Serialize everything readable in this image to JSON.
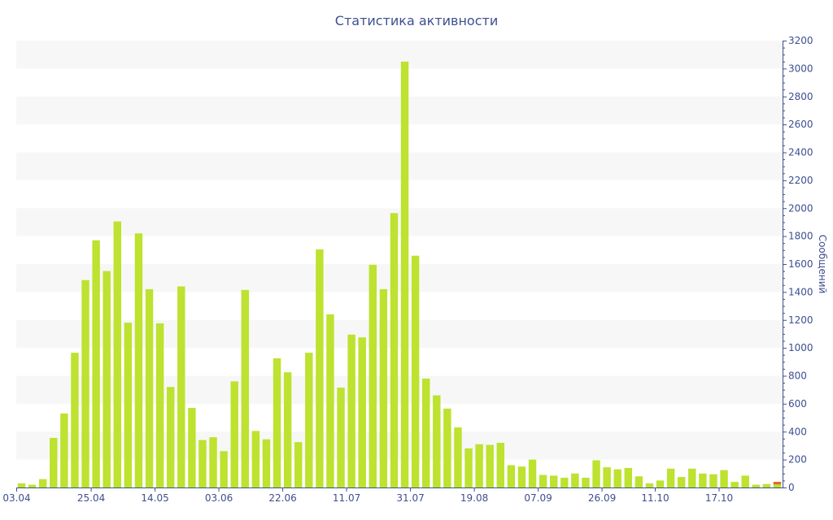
{
  "chart_data": {
    "type": "bar",
    "title": "Статистика активности",
    "ylabel": "Сообщений",
    "xlabel": "",
    "ylim": [
      0,
      3200
    ],
    "y_ticks": [
      0,
      200,
      400,
      600,
      800,
      1000,
      1200,
      1400,
      1600,
      1800,
      2000,
      2200,
      2400,
      2600,
      2800,
      3000,
      3200
    ],
    "x_tick_labels": [
      {
        "label": "03.04",
        "index": 0
      },
      {
        "label": "25.04",
        "index": 7
      },
      {
        "label": "14.05",
        "index": 13
      },
      {
        "label": "03.06",
        "index": 19
      },
      {
        "label": "22.06",
        "index": 25
      },
      {
        "label": "11.07",
        "index": 31
      },
      {
        "label": "31.07",
        "index": 37
      },
      {
        "label": "19.08",
        "index": 43
      },
      {
        "label": "07.09",
        "index": 49
      },
      {
        "label": "26.09",
        "index": 55
      },
      {
        "label": "11.10",
        "index": 60
      },
      {
        "label": "17.10",
        "index": 66
      }
    ],
    "grid": "alternating horizontal bands",
    "colors": {
      "bar": "#bde22f",
      "band": "#f7f7f7",
      "axis": "#3d4f8f",
      "highlight": "#e8622a"
    },
    "series": [
      {
        "values": [
          30,
          20,
          60,
          355,
          530,
          965,
          1485,
          1770,
          1550,
          1905,
          1180,
          1820,
          1420,
          1175,
          720,
          1440,
          570,
          340,
          360,
          260,
          760,
          1415,
          405,
          345,
          925,
          825,
          325,
          965,
          1705,
          1240,
          715,
          1095,
          1075,
          1595,
          1420,
          1965,
          3050,
          1660,
          780,
          660,
          565,
          430,
          280,
          310,
          305,
          320,
          160,
          150,
          200,
          90,
          85,
          70,
          100,
          70,
          195,
          145,
          130,
          140,
          80,
          30,
          50,
          135,
          75,
          135,
          100,
          95,
          125,
          40,
          85,
          20,
          25,
          40
        ]
      }
    ]
  }
}
